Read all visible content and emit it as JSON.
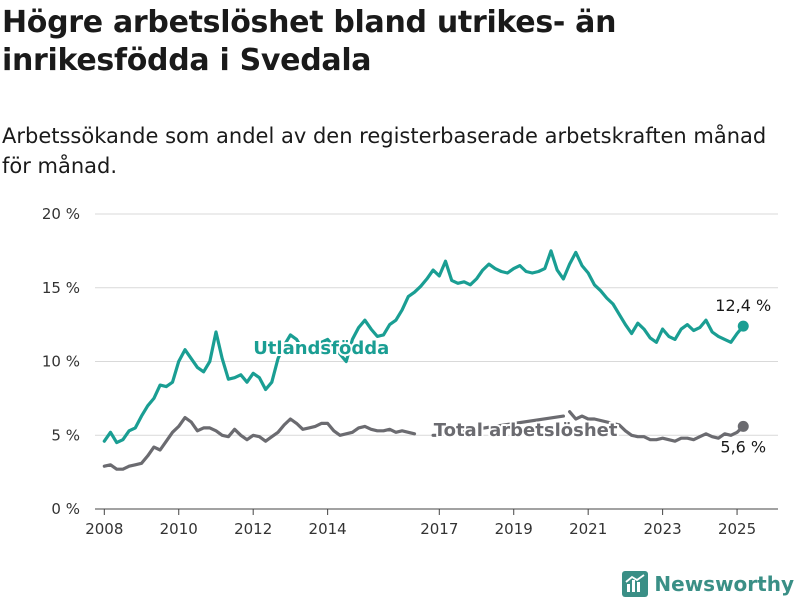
{
  "title": "Högre arbetslöshet bland utrikes- än inrikesfödda i Svedala",
  "subtitle": "Arbetssökande som andel av den registerbaserade arbetskraften månad för månad.",
  "brand": {
    "name": "Newsworthy",
    "icon": "newsworthy-logo-icon"
  },
  "colors": {
    "utlandsfodda": "#1a9e93",
    "total": "#6b6b70",
    "grid": "#d9d9d9",
    "axis": "#444444"
  },
  "chart_data": {
    "type": "line",
    "title": "Högre arbetslöshet bland utrikes- än inrikesfödda i Svedala",
    "subtitle": "Arbetssökande som andel av den registerbaserade arbetskraften månad för månad.",
    "ylim": [
      0,
      20
    ],
    "y_ticks": [
      "0 %",
      "5 %",
      "10 %",
      "15 %",
      "20 %"
    ],
    "x_ticks": [
      "2008",
      "2010",
      "2012",
      "2014",
      "2017",
      "2019",
      "2021",
      "2023",
      "2025"
    ],
    "grid": "horizontal",
    "legend": "direct labels",
    "series": [
      {
        "key": "utlandsfodda",
        "name": "Utlandsfödda",
        "end_label": "12,4 %",
        "points": [
          [
            "2008-01",
            4.6
          ],
          [
            "2008-03",
            5.2
          ],
          [
            "2008-05",
            4.5
          ],
          [
            "2008-07",
            4.7
          ],
          [
            "2008-09",
            5.3
          ],
          [
            "2008-11",
            5.5
          ],
          [
            "2009-01",
            6.3
          ],
          [
            "2009-03",
            7.0
          ],
          [
            "2009-05",
            7.5
          ],
          [
            "2009-07",
            8.4
          ],
          [
            "2009-09",
            8.3
          ],
          [
            "2009-11",
            8.6
          ],
          [
            "2010-01",
            10.0
          ],
          [
            "2010-03",
            10.8
          ],
          [
            "2010-05",
            10.2
          ],
          [
            "2010-07",
            9.6
          ],
          [
            "2010-09",
            9.3
          ],
          [
            "2010-11",
            10.0
          ],
          [
            "2011-01",
            12.0
          ],
          [
            "2011-03",
            10.2
          ],
          [
            "2011-05",
            8.8
          ],
          [
            "2011-07",
            8.9
          ],
          [
            "2011-09",
            9.1
          ],
          [
            "2011-11",
            8.6
          ],
          [
            "2012-01",
            9.2
          ],
          [
            "2012-03",
            8.9
          ],
          [
            "2012-05",
            8.1
          ],
          [
            "2012-07",
            8.6
          ],
          [
            "2012-09",
            10.2
          ],
          [
            "2012-11",
            11.1
          ],
          [
            "2013-01",
            11.8
          ],
          [
            "2013-03",
            11.5
          ],
          [
            "2013-05",
            10.8
          ],
          [
            "2013-07",
            10.9
          ],
          [
            "2013-09",
            11.0
          ],
          [
            "2013-11",
            11.3
          ],
          [
            "2014-01",
            11.5
          ],
          [
            "2014-03",
            11.0
          ],
          [
            "2014-05",
            10.5
          ],
          [
            "2014-07",
            10.0
          ],
          [
            "2014-09",
            11.5
          ],
          [
            "2014-11",
            12.3
          ],
          [
            "2015-01",
            12.8
          ],
          [
            "2015-03",
            12.2
          ],
          [
            "2015-05",
            11.7
          ],
          [
            "2015-07",
            11.8
          ],
          [
            "2015-09",
            12.5
          ],
          [
            "2015-11",
            12.8
          ],
          [
            "2016-01",
            13.5
          ],
          [
            "2016-03",
            14.4
          ],
          [
            "2016-05",
            14.7
          ],
          [
            "2016-07",
            15.1
          ],
          [
            "2016-09",
            15.6
          ],
          [
            "2016-11",
            16.2
          ],
          [
            "2017-01",
            15.8
          ],
          [
            "2017-03",
            16.8
          ],
          [
            "2017-05",
            15.5
          ],
          [
            "2017-07",
            15.3
          ],
          [
            "2017-09",
            15.4
          ],
          [
            "2017-11",
            15.2
          ],
          [
            "2018-01",
            15.6
          ],
          [
            "2018-03",
            16.2
          ],
          [
            "2018-05",
            16.6
          ],
          [
            "2018-07",
            16.3
          ],
          [
            "2018-09",
            16.1
          ],
          [
            "2018-11",
            16.0
          ],
          [
            "2019-01",
            16.3
          ],
          [
            "2019-03",
            16.5
          ],
          [
            "2019-05",
            16.1
          ],
          [
            "2019-07",
            16.0
          ],
          [
            "2019-09",
            16.1
          ],
          [
            "2019-11",
            16.3
          ],
          [
            "2020-01",
            17.5
          ],
          [
            "2020-03",
            16.2
          ],
          [
            "2020-05",
            15.6
          ],
          [
            "2020-07",
            16.6
          ],
          [
            "2020-09",
            17.4
          ],
          [
            "2020-11",
            16.5
          ],
          [
            "2021-01",
            16.0
          ],
          [
            "2021-03",
            15.2
          ],
          [
            "2021-05",
            14.8
          ],
          [
            "2021-07",
            14.3
          ],
          [
            "2021-09",
            13.9
          ],
          [
            "2021-11",
            13.2
          ],
          [
            "2022-01",
            12.5
          ],
          [
            "2022-03",
            11.9
          ],
          [
            "2022-05",
            12.6
          ],
          [
            "2022-07",
            12.2
          ],
          [
            "2022-09",
            11.6
          ],
          [
            "2022-11",
            11.3
          ],
          [
            "2023-01",
            12.2
          ],
          [
            "2023-03",
            11.7
          ],
          [
            "2023-05",
            11.5
          ],
          [
            "2023-07",
            12.2
          ],
          [
            "2023-09",
            12.5
          ],
          [
            "2023-11",
            12.1
          ],
          [
            "2024-01",
            12.3
          ],
          [
            "2024-03",
            12.8
          ],
          [
            "2024-05",
            12.0
          ],
          [
            "2024-07",
            11.7
          ],
          [
            "2024-09",
            11.5
          ],
          [
            "2024-11",
            11.3
          ],
          [
            "2025-01",
            11.9
          ],
          [
            "2025-03",
            12.4
          ]
        ]
      },
      {
        "key": "total",
        "name": "Total arbetslöshet",
        "end_label": "5,6 %",
        "gaps_after": [
          "2016-05",
          "2020-05",
          "2021-06"
        ],
        "points": [
          [
            "2008-01",
            2.9
          ],
          [
            "2008-03",
            3.0
          ],
          [
            "2008-05",
            2.7
          ],
          [
            "2008-07",
            2.7
          ],
          [
            "2008-09",
            2.9
          ],
          [
            "2008-11",
            3.0
          ],
          [
            "2009-01",
            3.1
          ],
          [
            "2009-03",
            3.6
          ],
          [
            "2009-05",
            4.2
          ],
          [
            "2009-07",
            4.0
          ],
          [
            "2009-09",
            4.6
          ],
          [
            "2009-11",
            5.2
          ],
          [
            "2010-01",
            5.6
          ],
          [
            "2010-03",
            6.2
          ],
          [
            "2010-05",
            5.9
          ],
          [
            "2010-07",
            5.3
          ],
          [
            "2010-09",
            5.5
          ],
          [
            "2010-11",
            5.5
          ],
          [
            "2011-01",
            5.3
          ],
          [
            "2011-03",
            5.0
          ],
          [
            "2011-05",
            4.9
          ],
          [
            "2011-07",
            5.4
          ],
          [
            "2011-09",
            5.0
          ],
          [
            "2011-11",
            4.7
          ],
          [
            "2012-01",
            5.0
          ],
          [
            "2012-03",
            4.9
          ],
          [
            "2012-05",
            4.6
          ],
          [
            "2012-07",
            4.9
          ],
          [
            "2012-09",
            5.2
          ],
          [
            "2012-11",
            5.7
          ],
          [
            "2013-01",
            6.1
          ],
          [
            "2013-03",
            5.8
          ],
          [
            "2013-05",
            5.4
          ],
          [
            "2013-07",
            5.5
          ],
          [
            "2013-09",
            5.6
          ],
          [
            "2013-11",
            5.8
          ],
          [
            "2014-01",
            5.8
          ],
          [
            "2014-03",
            5.3
          ],
          [
            "2014-05",
            5.0
          ],
          [
            "2014-07",
            5.1
          ],
          [
            "2014-09",
            5.2
          ],
          [
            "2014-11",
            5.5
          ],
          [
            "2015-01",
            5.6
          ],
          [
            "2015-03",
            5.4
          ],
          [
            "2015-05",
            5.3
          ],
          [
            "2015-07",
            5.3
          ],
          [
            "2015-09",
            5.4
          ],
          [
            "2015-11",
            5.2
          ],
          [
            "2016-01",
            5.3
          ],
          [
            "2016-03",
            5.2
          ],
          [
            "2016-05",
            5.1
          ],
          [
            "2016-11",
            5.0
          ],
          [
            "2017-01",
            5.0
          ],
          [
            "2017-03",
            5.1
          ],
          [
            "2020-05",
            6.3
          ],
          [
            "2020-07",
            6.6
          ],
          [
            "2020-09",
            6.1
          ],
          [
            "2020-11",
            6.3
          ],
          [
            "2021-01",
            6.1
          ],
          [
            "2021-03",
            6.1
          ],
          [
            "2021-11",
            5.7
          ],
          [
            "2022-01",
            5.3
          ],
          [
            "2022-03",
            5.0
          ],
          [
            "2022-05",
            4.9
          ],
          [
            "2022-07",
            4.9
          ],
          [
            "2022-09",
            4.7
          ],
          [
            "2022-11",
            4.7
          ],
          [
            "2023-01",
            4.8
          ],
          [
            "2023-03",
            4.7
          ],
          [
            "2023-05",
            4.6
          ],
          [
            "2023-07",
            4.8
          ],
          [
            "2023-09",
            4.8
          ],
          [
            "2023-11",
            4.7
          ],
          [
            "2024-01",
            4.9
          ],
          [
            "2024-03",
            5.1
          ],
          [
            "2024-05",
            4.9
          ],
          [
            "2024-07",
            4.8
          ],
          [
            "2024-09",
            5.1
          ],
          [
            "2024-11",
            5.0
          ],
          [
            "2025-01",
            5.2
          ],
          [
            "2025-03",
            5.6
          ]
        ]
      }
    ]
  }
}
